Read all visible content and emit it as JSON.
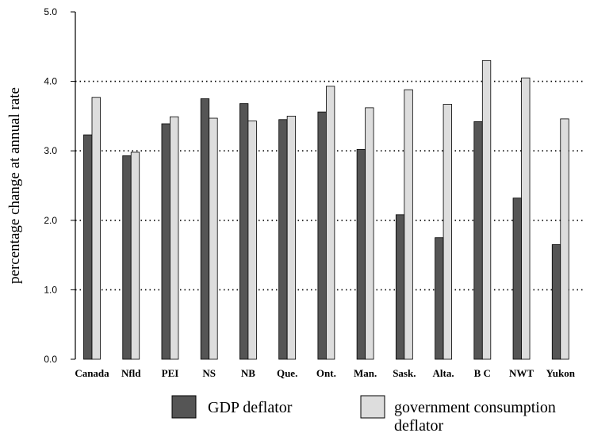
{
  "chart_data": {
    "type": "bar",
    "title": "",
    "xlabel": "",
    "ylabel": "percentage change at annual rate",
    "ylim": [
      0,
      5
    ],
    "y_ticks": [
      "0.0",
      "1.0",
      "2.0",
      "3.0",
      "4.0",
      "5.0"
    ],
    "grid": "dotted horizontal lines at 1.0, 2.0, 3.0, 4.0",
    "legend_position": "bottom",
    "categories": [
      "Canada",
      "Nfld",
      "PEI",
      "NS",
      "NB",
      "Que.",
      "Ont.",
      "Man.",
      "Sask.",
      "Alta.",
      "B C",
      "NWT",
      "Yukon"
    ],
    "series": [
      {
        "name": "GDP deflator",
        "color": "#555555",
        "values": [
          3.23,
          2.93,
          3.39,
          3.75,
          3.68,
          3.45,
          3.56,
          3.02,
          2.08,
          1.75,
          3.42,
          2.32,
          1.65
        ]
      },
      {
        "name": "government consumption deflator",
        "color": "#dddddd",
        "values": [
          3.77,
          2.98,
          3.49,
          3.47,
          3.43,
          3.5,
          3.93,
          3.62,
          3.88,
          3.67,
          4.3,
          4.05,
          3.46
        ]
      }
    ],
    "legend": {
      "gdp_label": "GDP deflator",
      "gov_label_line1": "government consumption",
      "gov_label_line2": "deflator"
    }
  }
}
